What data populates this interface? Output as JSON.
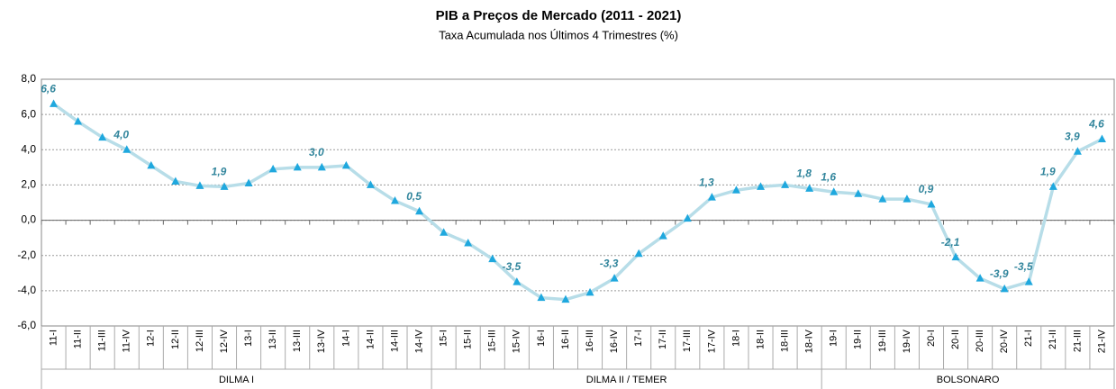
{
  "chart_data": {
    "type": "line",
    "title": "PIB a Preços de Mercado (2011 - 2021)",
    "subtitle": "Taxa Acumulada nos Últimos 4 Trimestres (%)",
    "categories": [
      "11-I",
      "11-II",
      "11-III",
      "11-IV",
      "12-I",
      "12-II",
      "12-III",
      "12-IV",
      "13-I",
      "13-II",
      "13-III",
      "13-IV",
      "14-I",
      "14-II",
      "14-III",
      "14-IV",
      "15-I",
      "15-II",
      "15-III",
      "15-IV",
      "16-I",
      "16-II",
      "16-III",
      "16-IV",
      "17-I",
      "17-II",
      "17-III",
      "17-IV",
      "18-I",
      "18-II",
      "18-III",
      "18-IV",
      "19-I",
      "19-II",
      "19-III",
      "19-IV",
      "20-I",
      "20-II",
      "20-III",
      "20-IV",
      "21-I",
      "21-II",
      "21-III",
      "21-IV"
    ],
    "series": [
      {
        "name": "PIB",
        "color": "#b7dde8",
        "marker_color": "#1fa8de",
        "values": [
          6.6,
          5.6,
          4.7,
          4.0,
          3.1,
          2.2,
          1.95,
          1.9,
          2.1,
          2.9,
          3.0,
          3.0,
          3.1,
          2.0,
          1.1,
          0.5,
          -0.7,
          -1.3,
          -2.2,
          -3.5,
          -4.4,
          -4.5,
          -4.1,
          -3.3,
          -1.9,
          -0.9,
          0.1,
          1.3,
          1.7,
          1.9,
          2.0,
          1.8,
          1.6,
          1.5,
          1.2,
          1.2,
          0.9,
          -2.1,
          -3.3,
          -3.9,
          -3.5,
          1.9,
          3.9,
          4.6
        ],
        "value_labels": [
          "6,6",
          null,
          null,
          "4,0",
          null,
          null,
          null,
          "1,9",
          null,
          null,
          null,
          "3,0",
          null,
          null,
          null,
          "0,5",
          null,
          null,
          null,
          "-3,5",
          null,
          null,
          null,
          "-3,3",
          null,
          null,
          null,
          "1,3",
          null,
          null,
          null,
          "1,8",
          "1,6",
          null,
          null,
          null,
          "0,9",
          "-2,1",
          null,
          "-3,9",
          "-3,5",
          "1,9",
          "3,9",
          "4,6"
        ]
      }
    ],
    "groups": [
      {
        "name": "DILMA I",
        "from": "11-I",
        "to": "14-IV"
      },
      {
        "name": "DILMA II / TEMER",
        "from": "15-I",
        "to": "18-IV"
      },
      {
        "name": "BOLSONARO",
        "from": "19-I",
        "to": "21-IV"
      }
    ],
    "ylim": [
      -6,
      8
    ],
    "yticks": [
      {
        "value": -6,
        "label": "-6,0"
      },
      {
        "value": -4,
        "label": "-4,0"
      },
      {
        "value": -2,
        "label": "-2,0"
      },
      {
        "value": 0,
        "label": "0,0"
      },
      {
        "value": 2,
        "label": "2,0"
      },
      {
        "value": 4,
        "label": "4,0"
      },
      {
        "value": 6,
        "label": "6,0"
      },
      {
        "value": 8,
        "label": "8,0"
      }
    ],
    "grid": true
  }
}
